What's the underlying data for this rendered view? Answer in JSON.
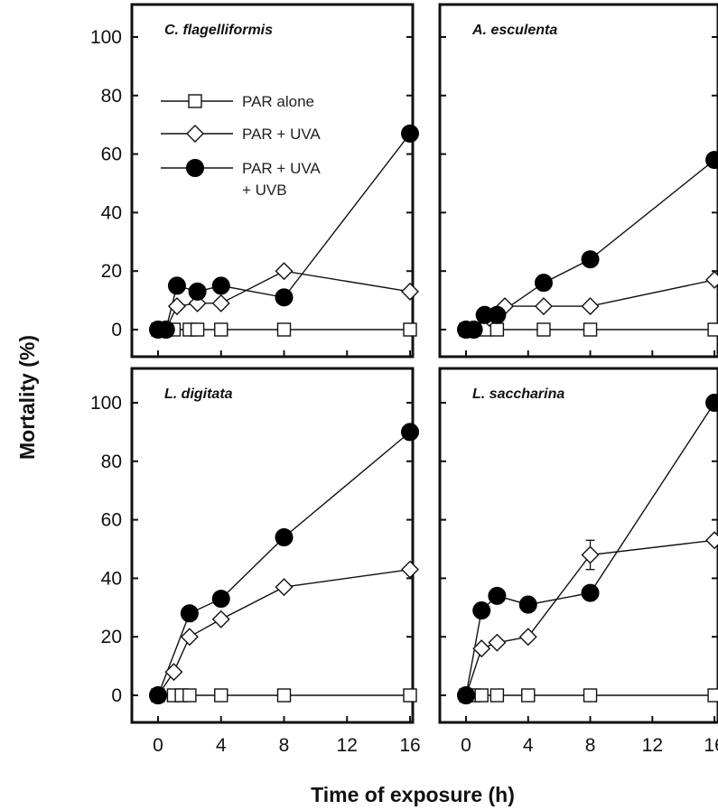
{
  "chart_data": {
    "type": "line",
    "xlabel": "Time of exposure (h)",
    "ylabel": "Mortality (%)",
    "xlim": [
      -2,
      17
    ],
    "ylim": [
      -10,
      110
    ],
    "xticks": [
      0,
      4,
      8,
      12,
      16
    ],
    "yticks": [
      0,
      20,
      40,
      60,
      80,
      100
    ],
    "legend": {
      "placement": "top-left of first panel",
      "entries": [
        {
          "series": "PAR alone",
          "marker": "open-square",
          "lines": [
            "PAR alone"
          ]
        },
        {
          "series": "PAR + UVA",
          "marker": "open-diamond",
          "lines": [
            "PAR + UVA"
          ]
        },
        {
          "series": "PAR + UVA + UVB",
          "marker": "filled-circle",
          "lines": [
            "PAR + UVA",
            " + UVB"
          ]
        }
      ]
    },
    "panels": [
      {
        "title": "C. flagelliformis",
        "series": [
          {
            "name": "PAR alone",
            "marker": "open-square",
            "x": [
              0,
              0.5,
              1,
              2,
              2.5,
              4,
              8,
              16
            ],
            "y": [
              0,
              0,
              0,
              0,
              0,
              0,
              0,
              0
            ]
          },
          {
            "name": "PAR + UVA",
            "marker": "open-diamond",
            "x": [
              0,
              0.5,
              1.2,
              2.5,
              4,
              8,
              16
            ],
            "y": [
              0,
              0,
              8,
              9,
              9,
              20,
              13
            ]
          },
          {
            "name": "PAR + UVA + UVB",
            "marker": "filled-circle",
            "x": [
              0,
              0.5,
              1.2,
              2.5,
              4,
              8,
              16
            ],
            "y": [
              0,
              0,
              15,
              13,
              15,
              11,
              67
            ]
          }
        ]
      },
      {
        "title": "A. esculenta",
        "series": [
          {
            "name": "PAR alone",
            "marker": "open-square",
            "x": [
              0,
              0.5,
              1.2,
              2,
              5,
              8,
              16
            ],
            "y": [
              0,
              0,
              0,
              0,
              0,
              0,
              0
            ]
          },
          {
            "name": "PAR + UVA",
            "marker": "open-diamond",
            "x": [
              0,
              0.5,
              1.5,
              2.5,
              5,
              8,
              16
            ],
            "y": [
              0,
              0,
              4,
              8,
              8,
              8,
              17
            ]
          },
          {
            "name": "PAR + UVA + UVB",
            "marker": "filled-circle",
            "x": [
              0,
              0.5,
              1.2,
              2,
              5,
              8,
              16
            ],
            "y": [
              0,
              0,
              5,
              5,
              16,
              24,
              58
            ]
          }
        ]
      },
      {
        "title": "L. digitata",
        "series": [
          {
            "name": "PAR alone",
            "marker": "open-square",
            "x": [
              0,
              1,
              1.5,
              2,
              4,
              8,
              16
            ],
            "y": [
              0,
              0,
              0,
              0,
              0,
              0,
              0
            ]
          },
          {
            "name": "PAR + UVA",
            "marker": "open-diamond",
            "x": [
              0,
              1,
              2,
              4,
              8,
              16
            ],
            "y": [
              0,
              8,
              20,
              26,
              37,
              43
            ]
          },
          {
            "name": "PAR + UVA + UVB",
            "marker": "filled-circle",
            "x": [
              0,
              2,
              4,
              8,
              16
            ],
            "y": [
              0,
              28,
              33,
              54,
              90
            ]
          }
        ]
      },
      {
        "title": "L. saccharina",
        "series": [
          {
            "name": "PAR alone",
            "marker": "open-square",
            "x": [
              0,
              0.5,
              1,
              2,
              4,
              8,
              16
            ],
            "y": [
              0,
              0,
              0,
              0,
              0,
              0,
              0
            ]
          },
          {
            "name": "PAR + UVA",
            "marker": "open-diamond",
            "x": [
              0,
              1,
              2,
              4,
              8,
              16
            ],
            "y": [
              0,
              16,
              18,
              20,
              48,
              53
            ],
            "error": [
              null,
              null,
              null,
              null,
              5,
              null
            ]
          },
          {
            "name": "PAR + UVA + UVB",
            "marker": "filled-circle",
            "x": [
              0,
              1,
              2,
              4,
              8,
              16
            ],
            "y": [
              0,
              29,
              34,
              31,
              35,
              100
            ]
          }
        ]
      }
    ]
  }
}
